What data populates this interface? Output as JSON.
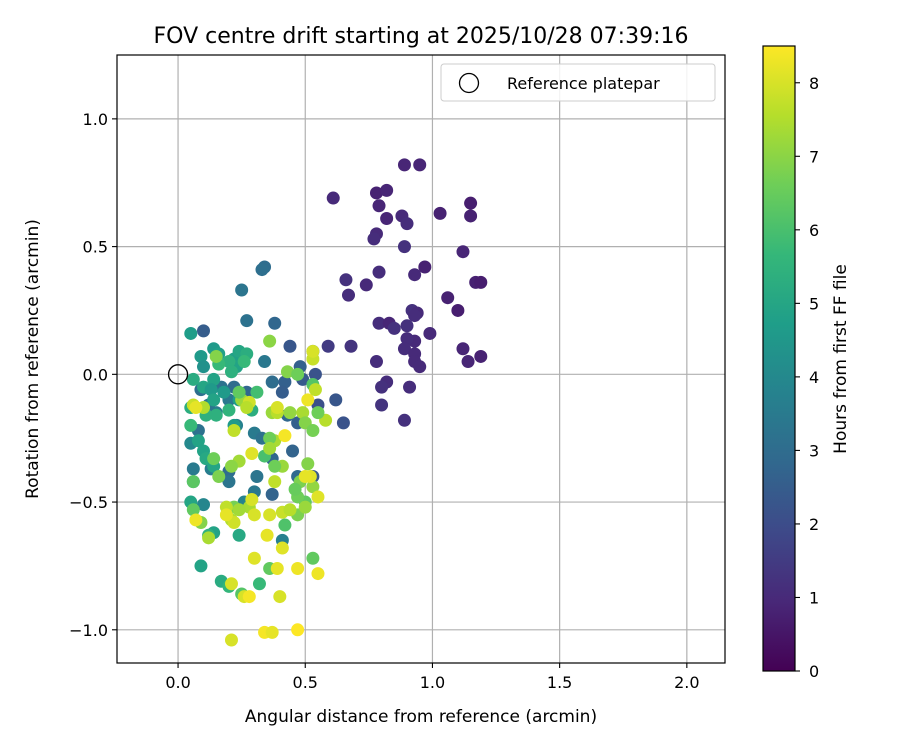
{
  "chart_data": {
    "type": "scatter",
    "title": "FOV centre drift starting at 2025/10/28 07:39:16",
    "xlabel": "Angular distance from reference (arcmin)",
    "ylabel": "Rotation from reference (arcmin)",
    "xlim": [
      -0.24,
      2.15
    ],
    "ylim": [
      -1.13,
      1.25
    ],
    "xticks": [
      0.0,
      0.5,
      1.0,
      1.5,
      2.0
    ],
    "xtick_labels": [
      "0.0",
      "0.5",
      "1.0",
      "1.5",
      "2.0"
    ],
    "yticks": [
      -1.0,
      -0.5,
      0.0,
      0.5,
      1.0
    ],
    "ytick_labels": [
      "−1.0",
      "−0.5",
      "0.0",
      "0.5",
      "1.0"
    ],
    "grid": true,
    "legend": {
      "position": "top-right",
      "entries": [
        "Reference platepar"
      ]
    },
    "reference_point": {
      "x": 0.0,
      "y": 0.0,
      "label": "Reference platepar"
    },
    "colorbar": {
      "label": "Hours from first FF file",
      "range": [
        0,
        8.5
      ],
      "ticks": [
        0,
        1,
        2,
        3,
        4,
        5,
        6,
        7,
        8
      ],
      "tick_labels": [
        "0",
        "1",
        "2",
        "3",
        "4",
        "5",
        "6",
        "7",
        "8"
      ],
      "colormap": "viridis",
      "colors": [
        "#440154",
        "#482878",
        "#3e4989",
        "#31688e",
        "#26828e",
        "#1f9e89",
        "#35b779",
        "#6ece58",
        "#b5de2b",
        "#fde725"
      ]
    },
    "points": [
      [
        0.89,
        0.82,
        0.9
      ],
      [
        0.95,
        0.82,
        0.9
      ],
      [
        0.61,
        0.69,
        1.0
      ],
      [
        0.78,
        0.71,
        0.8
      ],
      [
        0.82,
        0.72,
        0.9
      ],
      [
        0.79,
        0.66,
        0.9
      ],
      [
        1.15,
        0.67,
        0.7
      ],
      [
        1.03,
        0.63,
        0.8
      ],
      [
        1.15,
        0.62,
        0.8
      ],
      [
        0.82,
        0.61,
        0.9
      ],
      [
        0.88,
        0.62,
        1.0
      ],
      [
        0.9,
        0.59,
        1.1
      ],
      [
        0.78,
        0.55,
        1.0
      ],
      [
        0.77,
        0.53,
        1.1
      ],
      [
        0.89,
        0.5,
        1.2
      ],
      [
        1.12,
        0.48,
        0.9
      ],
      [
        0.97,
        0.42,
        0.8
      ],
      [
        0.93,
        0.39,
        1.0
      ],
      [
        0.79,
        0.4,
        1.1
      ],
      [
        0.66,
        0.37,
        1.2
      ],
      [
        0.74,
        0.35,
        1.0
      ],
      [
        1.17,
        0.36,
        0.8
      ],
      [
        1.19,
        0.36,
        0.7
      ],
      [
        0.67,
        0.31,
        1.1
      ],
      [
        1.06,
        0.3,
        0.8
      ],
      [
        1.1,
        0.25,
        0.7
      ],
      [
        0.92,
        0.25,
        1.2
      ],
      [
        0.94,
        0.24,
        1.0
      ],
      [
        0.93,
        0.23,
        1.1
      ],
      [
        0.79,
        0.2,
        1.1
      ],
      [
        0.83,
        0.2,
        0.9
      ],
      [
        0.9,
        0.19,
        1.2
      ],
      [
        0.85,
        0.18,
        1.2
      ],
      [
        0.99,
        0.16,
        1.0
      ],
      [
        0.93,
        0.13,
        1.0
      ],
      [
        0.9,
        0.14,
        1.1
      ],
      [
        0.68,
        0.11,
        1.3
      ],
      [
        0.59,
        0.11,
        1.5
      ],
      [
        1.12,
        0.1,
        0.9
      ],
      [
        0.89,
        0.1,
        1.1
      ],
      [
        0.93,
        0.08,
        1.0
      ],
      [
        1.19,
        0.07,
        0.8
      ],
      [
        1.14,
        0.05,
        0.9
      ],
      [
        0.93,
        0.05,
        1.0
      ],
      [
        0.78,
        0.05,
        1.1
      ],
      [
        0.95,
        0.03,
        1.0
      ],
      [
        0.82,
        -0.03,
        1.1
      ],
      [
        0.8,
        -0.05,
        1.2
      ],
      [
        0.91,
        -0.05,
        1.1
      ],
      [
        0.8,
        -0.12,
        1.3
      ],
      [
        0.89,
        -0.18,
        1.2
      ],
      [
        0.34,
        0.42,
        3.0
      ],
      [
        0.33,
        0.41,
        3.1
      ],
      [
        0.25,
        0.33,
        3.3
      ],
      [
        0.27,
        0.21,
        3.2
      ],
      [
        0.38,
        0.2,
        2.8
      ],
      [
        0.1,
        0.17,
        2.5
      ],
      [
        0.44,
        0.11,
        2.3
      ],
      [
        0.34,
        0.05,
        3.4
      ],
      [
        0.48,
        0.03,
        2.6
      ],
      [
        0.53,
        0.09,
        3.0
      ],
      [
        0.54,
        0.0,
        2.2
      ],
      [
        0.49,
        -0.02,
        2.4
      ],
      [
        0.42,
        -0.03,
        2.6
      ],
      [
        0.37,
        -0.03,
        3.0
      ],
      [
        0.62,
        -0.1,
        2.3
      ],
      [
        0.55,
        -0.12,
        2.1
      ],
      [
        0.65,
        -0.19,
        2.2
      ],
      [
        0.47,
        -0.19,
        2.6
      ],
      [
        0.43,
        -0.16,
        2.8
      ],
      [
        0.41,
        -0.07,
        2.5
      ],
      [
        0.27,
        -0.07,
        2.8
      ],
      [
        0.22,
        -0.05,
        3.0
      ],
      [
        0.17,
        -0.05,
        3.2
      ],
      [
        0.2,
        -0.1,
        3.4
      ],
      [
        0.15,
        -0.15,
        3.6
      ],
      [
        0.09,
        -0.06,
        3.1
      ],
      [
        0.12,
        -0.12,
        3.3
      ],
      [
        0.08,
        -0.22,
        3.2
      ],
      [
        0.23,
        -0.2,
        3.7
      ],
      [
        0.3,
        -0.23,
        3.5
      ],
      [
        0.33,
        -0.25,
        3.2
      ],
      [
        0.37,
        -0.33,
        2.8
      ],
      [
        0.45,
        -0.3,
        2.7
      ],
      [
        0.53,
        -0.4,
        2.4
      ],
      [
        0.47,
        -0.4,
        2.9
      ],
      [
        0.31,
        -0.4,
        3.3
      ],
      [
        0.2,
        -0.38,
        3.0
      ],
      [
        0.13,
        -0.37,
        3.6
      ],
      [
        0.06,
        -0.37,
        3.5
      ],
      [
        0.37,
        -0.47,
        2.7
      ],
      [
        0.3,
        -0.46,
        3.4
      ],
      [
        0.41,
        -0.65,
        3.7
      ],
      [
        0.26,
        -0.5,
        3.8
      ],
      [
        0.2,
        -0.42,
        3.3
      ],
      [
        0.1,
        -0.51,
        3.9
      ],
      [
        0.05,
        -0.27,
        4.0
      ],
      [
        0.06,
        -0.42,
        4.4
      ],
      [
        0.05,
        0.16,
        4.7
      ],
      [
        0.09,
        0.07,
        4.6
      ],
      [
        0.14,
        0.1,
        4.6
      ],
      [
        0.1,
        0.03,
        4.3
      ],
      [
        0.16,
        0.08,
        4.8
      ],
      [
        0.22,
        0.06,
        4.8
      ],
      [
        0.24,
        0.09,
        5.0
      ],
      [
        0.27,
        0.08,
        5.3
      ],
      [
        0.23,
        0.03,
        4.9
      ],
      [
        0.2,
        0.05,
        5.4
      ],
      [
        0.16,
        0.04,
        5.7
      ],
      [
        0.26,
        0.05,
        5.7
      ],
      [
        0.21,
        0.01,
        5.4
      ],
      [
        0.14,
        -0.02,
        4.9
      ],
      [
        0.06,
        -0.02,
        5.2
      ],
      [
        0.1,
        -0.05,
        5.0
      ],
      [
        0.13,
        -0.06,
        4.6
      ],
      [
        0.18,
        -0.07,
        4.6
      ],
      [
        0.14,
        -0.1,
        4.9
      ],
      [
        0.24,
        -0.1,
        4.7
      ],
      [
        0.15,
        -0.16,
        5.4
      ],
      [
        0.05,
        -0.13,
        5.3
      ],
      [
        0.11,
        -0.16,
        5.4
      ],
      [
        0.2,
        -0.14,
        5.5
      ],
      [
        0.31,
        -0.07,
        5.9
      ],
      [
        0.22,
        -0.2,
        4.6
      ],
      [
        0.08,
        -0.26,
        4.9
      ],
      [
        0.05,
        -0.2,
        5.7
      ],
      [
        0.29,
        -0.14,
        5.3
      ],
      [
        0.1,
        -0.3,
        4.9
      ],
      [
        0.11,
        -0.33,
        5.1
      ],
      [
        0.14,
        -0.36,
        5.0
      ],
      [
        0.05,
        -0.5,
        5.0
      ],
      [
        0.14,
        -0.62,
        4.9
      ],
      [
        0.12,
        -0.63,
        5.4
      ],
      [
        0.24,
        -0.63,
        5.1
      ],
      [
        0.09,
        -0.75,
        4.9
      ],
      [
        0.17,
        -0.81,
        5.2
      ],
      [
        0.2,
        -0.83,
        5.6
      ],
      [
        0.32,
        -0.82,
        5.7
      ],
      [
        0.25,
        -0.86,
        6.2
      ],
      [
        0.36,
        -0.76,
        6.4
      ],
      [
        0.53,
        -0.72,
        6.4
      ],
      [
        0.42,
        -0.59,
        6.1
      ],
      [
        0.47,
        -0.55,
        6.8
      ],
      [
        0.5,
        -0.5,
        6.4
      ],
      [
        0.47,
        -0.48,
        6.6
      ],
      [
        0.53,
        -0.44,
        7.1
      ],
      [
        0.51,
        -0.35,
        6.9
      ],
      [
        0.48,
        -0.42,
        6.8
      ],
      [
        0.41,
        -0.36,
        7.2
      ],
      [
        0.38,
        -0.42,
        7.7
      ],
      [
        0.38,
        -0.36,
        6.6
      ],
      [
        0.34,
        -0.32,
        6.0
      ],
      [
        0.24,
        -0.34,
        7.3
      ],
      [
        0.21,
        -0.36,
        7.0
      ],
      [
        0.14,
        -0.33,
        6.6
      ],
      [
        0.16,
        -0.4,
        6.8
      ],
      [
        0.06,
        -0.42,
        6.3
      ],
      [
        0.06,
        -0.53,
        6.4
      ],
      [
        0.09,
        -0.58,
        6.9
      ],
      [
        0.12,
        -0.64,
        7.4
      ],
      [
        0.07,
        -0.57,
        8.3
      ],
      [
        0.21,
        -0.57,
        7.5
      ],
      [
        0.22,
        -0.52,
        6.7
      ],
      [
        0.28,
        -0.52,
        7.4
      ],
      [
        0.3,
        -0.55,
        8.0
      ],
      [
        0.36,
        -0.55,
        8.0
      ],
      [
        0.41,
        -0.54,
        7.8
      ],
      [
        0.44,
        -0.53,
        7.6
      ],
      [
        0.5,
        -0.52,
        7.2
      ],
      [
        0.46,
        -0.45,
        6.5
      ],
      [
        0.52,
        -0.4,
        8.1
      ],
      [
        0.5,
        -0.4,
        8.2
      ],
      [
        0.55,
        -0.48,
        8.1
      ],
      [
        0.38,
        -0.26,
        7.4
      ],
      [
        0.36,
        -0.25,
        6.6
      ],
      [
        0.42,
        -0.24,
        8.4
      ],
      [
        0.44,
        -0.15,
        7.1
      ],
      [
        0.49,
        -0.15,
        7.4
      ],
      [
        0.5,
        -0.19,
        6.9
      ],
      [
        0.53,
        -0.22,
        6.7
      ],
      [
        0.58,
        -0.18,
        7.6
      ],
      [
        0.55,
        -0.15,
        6.6
      ],
      [
        0.51,
        -0.1,
        8.3
      ],
      [
        0.53,
        -0.04,
        6.2
      ],
      [
        0.54,
        -0.06,
        7.7
      ],
      [
        0.43,
        0.01,
        6.9
      ],
      [
        0.47,
        0.0,
        6.6
      ],
      [
        0.53,
        0.06,
        7.8
      ],
      [
        0.53,
        0.09,
        8.0
      ],
      [
        0.36,
        0.13,
        7.0
      ],
      [
        0.15,
        0.07,
        6.9
      ],
      [
        0.1,
        -0.13,
        7.5
      ],
      [
        0.06,
        -0.12,
        7.8
      ],
      [
        0.07,
        -0.13,
        8.2
      ],
      [
        0.25,
        -0.1,
        7.2
      ],
      [
        0.28,
        -0.11,
        7.9
      ],
      [
        0.27,
        -0.13,
        7.6
      ],
      [
        0.24,
        -0.07,
        6.4
      ],
      [
        0.37,
        -0.15,
        7.2
      ],
      [
        0.39,
        -0.15,
        7.6
      ],
      [
        0.39,
        -0.13,
        8.0
      ],
      [
        0.22,
        -0.22,
        7.7
      ],
      [
        0.29,
        -0.31,
        8.1
      ],
      [
        0.36,
        -0.29,
        7.3
      ],
      [
        0.29,
        -0.49,
        8.0
      ],
      [
        0.24,
        -0.53,
        7.3
      ],
      [
        0.19,
        -0.52,
        7.7
      ],
      [
        0.22,
        -0.58,
        7.9
      ],
      [
        0.19,
        -0.55,
        8.2
      ],
      [
        0.3,
        -0.72,
        8.1
      ],
      [
        0.35,
        -0.63,
        8.2
      ],
      [
        0.41,
        -0.68,
        8.1
      ],
      [
        0.21,
        -0.82,
        8.0
      ],
      [
        0.26,
        -0.87,
        8.0
      ],
      [
        0.28,
        -0.87,
        8.4
      ],
      [
        0.4,
        -0.87,
        8.0
      ],
      [
        0.39,
        -0.76,
        8.2
      ],
      [
        0.47,
        -0.76,
        8.3
      ],
      [
        0.55,
        -0.78,
        8.3
      ],
      [
        0.34,
        -1.01,
        8.4
      ],
      [
        0.37,
        -1.01,
        8.2
      ],
      [
        0.47,
        -1.0,
        8.5
      ],
      [
        0.21,
        -1.04,
        8.0
      ]
    ]
  }
}
